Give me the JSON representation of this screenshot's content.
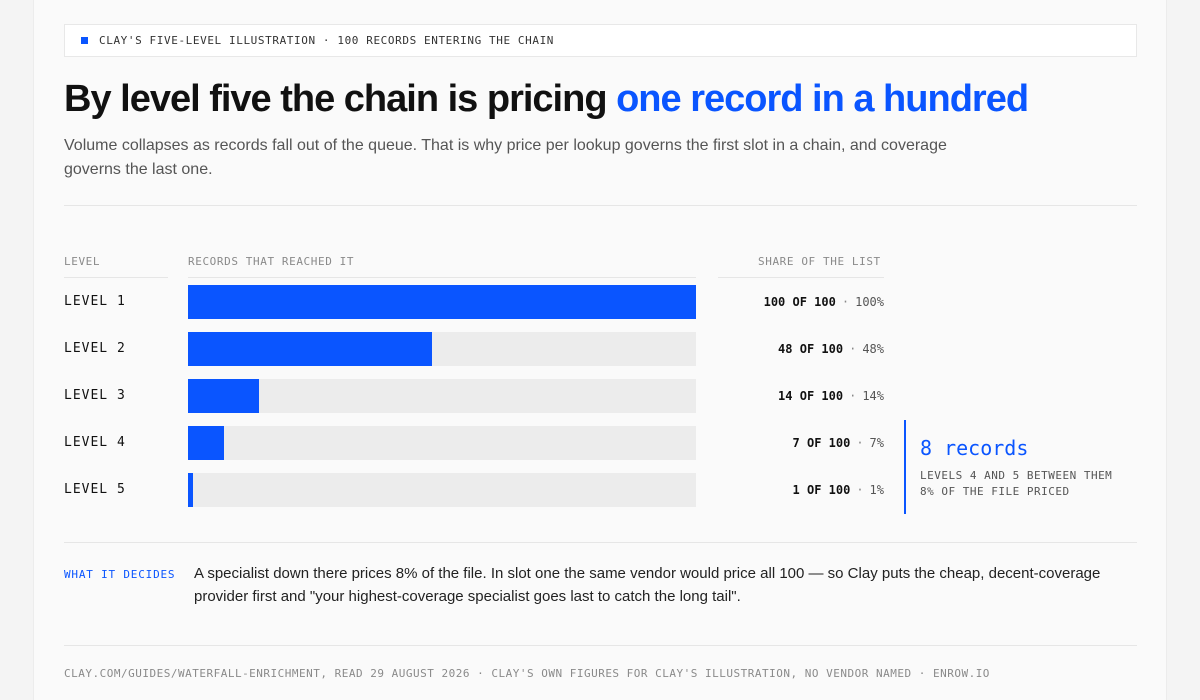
{
  "kicker": "CLAY'S FIVE-LEVEL ILLUSTRATION · 100 RECORDS ENTERING THE CHAIN",
  "headline": {
    "main": "By level five the chain is pricing ",
    "accent": "one record in a hundred"
  },
  "subhead": "Volume collapses as records fall out of the queue. That is why price per lookup governs the first slot in a chain, and coverage governs the last one.",
  "colors": {
    "accent": "#0a55ff",
    "track": "#ececec"
  },
  "chart_data": {
    "type": "bar",
    "orientation": "horizontal",
    "columns": {
      "level": "LEVEL",
      "records": "RECORDS THAT REACHED IT",
      "share": "SHARE OF THE LIST"
    },
    "categories": [
      "LEVEL 1",
      "LEVEL 2",
      "LEVEL 3",
      "LEVEL 4",
      "LEVEL 5"
    ],
    "values": [
      100,
      48,
      14,
      7,
      1
    ],
    "xlim": [
      0,
      100
    ],
    "share_labels": [
      {
        "count": "100 OF 100",
        "pct": "100%"
      },
      {
        "count": "48 OF 100",
        "pct": "48%"
      },
      {
        "count": "14 OF 100",
        "pct": "14%"
      },
      {
        "count": "7 OF 100",
        "pct": "7%"
      },
      {
        "count": "1 OF 100",
        "pct": "1%"
      }
    ],
    "separator": "·",
    "annotation": {
      "value": "8 records",
      "line1": "LEVELS 4 AND 5 BETWEEN THEM",
      "line2": "8% OF THE FILE PRICED"
    }
  },
  "decides": {
    "label": "WHAT IT DECIDES",
    "text": "A specialist down there prices 8% of the file. In slot one the same vendor would price all 100 — so Clay puts the cheap, decent-coverage provider first and \"your highest-coverage specialist goes last to catch the long tail\"."
  },
  "footer": "CLAY.COM/GUIDES/WATERFALL-ENRICHMENT, READ 29 AUGUST 2026 · CLAY'S OWN FIGURES FOR CLAY'S ILLUSTRATION, NO VENDOR NAMED · ENROW.IO"
}
